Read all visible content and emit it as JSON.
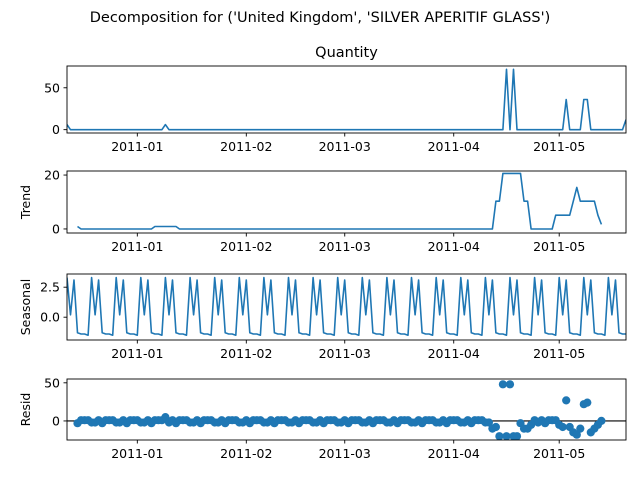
{
  "chart_data": {
    "type": "line",
    "suptitle": "Decomposition for ('United Kingdom', 'SILVER APERITIF GLASS')",
    "x_tick_labels": [
      "2011-01",
      "2011-02",
      "2011-03",
      "2011-04",
      "2011-05"
    ],
    "x_ticks": [
      "2011-01-01",
      "2011-02-01",
      "2011-03-01",
      "2011-04-01",
      "2011-05-01"
    ],
    "x_range": [
      "2010-12-12",
      "2011-05-20"
    ],
    "line_color": "#1f77b4",
    "panels": [
      {
        "id": "quantity",
        "title": "Quantity",
        "ylabel": "",
        "kind": "line",
        "ylim": [
          -4,
          76
        ],
        "yticks": [
          0,
          50
        ],
        "ytick_labels": [
          "0",
          "50"
        ],
        "points": [
          [
            "2010-12-12",
            6
          ],
          [
            "2010-12-13",
            0
          ],
          [
            "2011-01-08",
            0
          ],
          [
            "2011-01-09",
            6
          ],
          [
            "2011-01-10",
            0
          ],
          [
            "2011-04-15",
            0
          ],
          [
            "2011-04-16",
            72
          ],
          [
            "2011-04-17",
            0
          ],
          [
            "2011-04-18",
            72
          ],
          [
            "2011-04-19",
            0
          ],
          [
            "2011-05-02",
            0
          ],
          [
            "2011-05-03",
            36
          ],
          [
            "2011-05-04",
            0
          ],
          [
            "2011-05-07",
            0
          ],
          [
            "2011-05-08",
            36
          ],
          [
            "2011-05-09",
            36
          ],
          [
            "2011-05-10",
            0
          ],
          [
            "2011-05-19",
            0
          ],
          [
            "2011-05-20",
            12
          ]
        ]
      },
      {
        "id": "trend",
        "title": "",
        "ylabel": "Trend",
        "kind": "line",
        "ylim": [
          -1.5,
          21.5
        ],
        "yticks": [
          0,
          20
        ],
        "ytick_labels": [
          "0",
          "20"
        ],
        "points": [
          [
            "2010-12-15",
            0.9
          ],
          [
            "2010-12-16",
            0
          ],
          [
            "2011-01-05",
            0
          ],
          [
            "2011-01-06",
            0.9
          ],
          [
            "2011-01-12",
            0.9
          ],
          [
            "2011-01-13",
            0
          ],
          [
            "2011-04-12",
            0
          ],
          [
            "2011-04-13",
            10.3
          ],
          [
            "2011-04-14",
            10.3
          ],
          [
            "2011-04-15",
            20.6
          ],
          [
            "2011-04-20",
            20.6
          ],
          [
            "2011-04-21",
            10.3
          ],
          [
            "2011-04-22",
            10.3
          ],
          [
            "2011-04-23",
            0
          ],
          [
            "2011-04-29",
            0
          ],
          [
            "2011-04-30",
            5.1
          ],
          [
            "2011-05-04",
            5.1
          ],
          [
            "2011-05-05",
            10.3
          ],
          [
            "2011-05-06",
            15.4
          ],
          [
            "2011-05-07",
            10.3
          ],
          [
            "2011-05-11",
            10.3
          ],
          [
            "2011-05-12",
            5.1
          ],
          [
            "2011-05-13",
            1.7
          ]
        ]
      },
      {
        "id": "seasonal",
        "title": "",
        "ylabel": "Seasonal",
        "kind": "seasonal",
        "ylim": [
          -1.9,
          3.6
        ],
        "yticks": [
          0,
          2.5
        ],
        "ytick_labels": [
          "0.0",
          "2.5"
        ],
        "start": "2010-12-12",
        "end": "2011-05-20",
        "pattern": [
          3.3,
          0.2,
          3.1,
          -1.3,
          -1.4,
          -1.4,
          -1.5
        ]
      },
      {
        "id": "resid",
        "title": "",
        "ylabel": "Resid",
        "kind": "scatter",
        "ylim": [
          -25,
          55
        ],
        "yticks": [
          0,
          50
        ],
        "ytick_labels": [
          "0",
          "50"
        ],
        "zero_line": true,
        "start": "2010-12-15",
        "end": "2011-05-13",
        "default_pattern": [
          -3,
          1,
          1,
          1,
          -2,
          -2,
          1
        ],
        "overrides": [
          [
            "2011-01-09",
            5
          ],
          [
            "2011-04-12",
            -10
          ],
          [
            "2011-04-13",
            -8
          ],
          [
            "2011-04-14",
            -20
          ],
          [
            "2011-04-15",
            48
          ],
          [
            "2011-04-16",
            -20
          ],
          [
            "2011-04-17",
            48
          ],
          [
            "2011-04-18",
            -20
          ],
          [
            "2011-04-19",
            -20
          ],
          [
            "2011-04-21",
            -10
          ],
          [
            "2011-04-22",
            -10
          ],
          [
            "2011-04-23",
            -5
          ],
          [
            "2011-04-24",
            1
          ],
          [
            "2011-05-01",
            -5
          ],
          [
            "2011-05-02",
            -8
          ],
          [
            "2011-05-03",
            27
          ],
          [
            "2011-05-04",
            -8
          ],
          [
            "2011-05-05",
            -15
          ],
          [
            "2011-05-06",
            -18
          ],
          [
            "2011-05-07",
            -10
          ],
          [
            "2011-05-08",
            22
          ],
          [
            "2011-05-09",
            24
          ],
          [
            "2011-05-10",
            -15
          ],
          [
            "2011-05-11",
            -10
          ],
          [
            "2011-05-12",
            -5
          ],
          [
            "2011-05-13",
            0
          ]
        ]
      }
    ]
  }
}
